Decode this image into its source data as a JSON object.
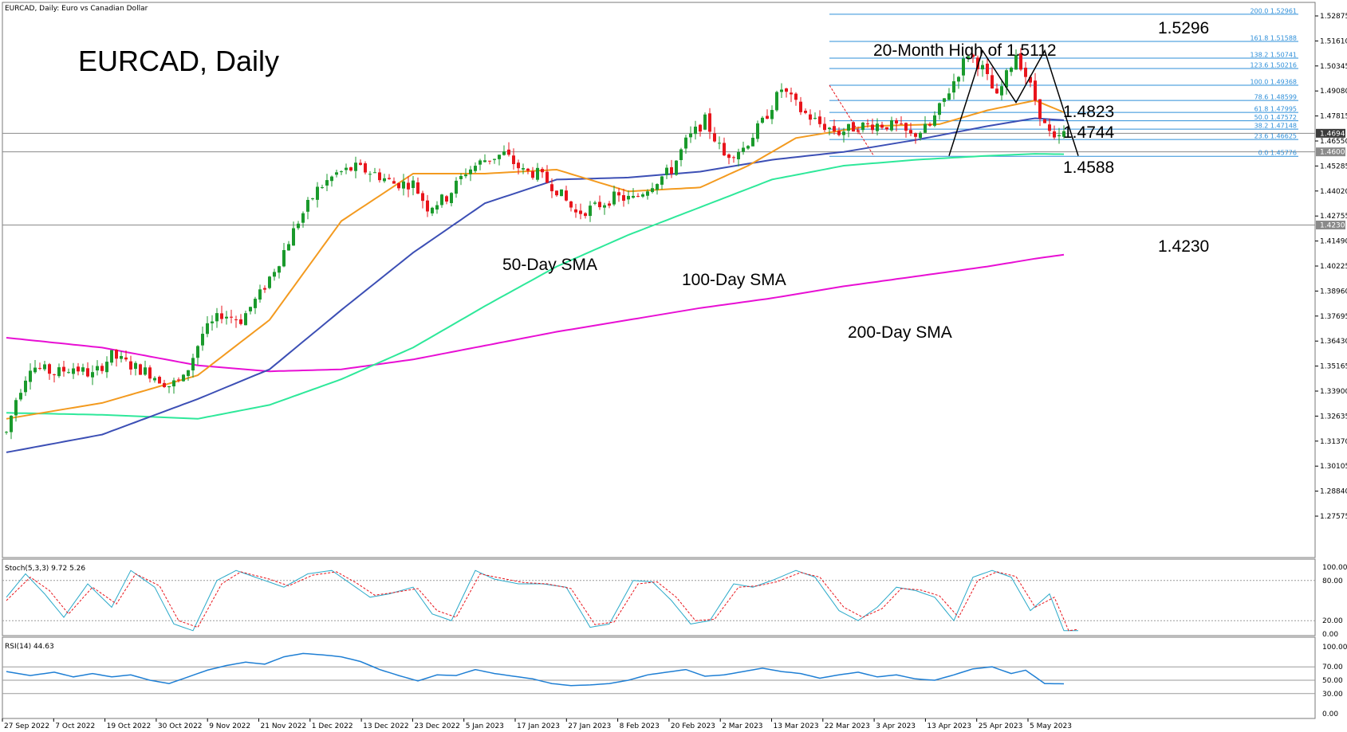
{
  "header": {
    "window_title": "EURCAD, Daily:  Euro vs Canadian Dollar",
    "chart_title": "EURCAD, Daily"
  },
  "colors": {
    "bull": "#1a9a2c",
    "bear": "#e8151c",
    "sma20": "#f39a1f",
    "sma50": "#3c4fb5",
    "sma100": "#2ee89a",
    "sma200": "#e80fd4",
    "fib": "#2e8fd9",
    "stoch_main": "#2aa9c9",
    "stoch_signal": "#e8151c",
    "rsi": "#1f7fd4"
  },
  "price_axis": {
    "ticks": [
      "1.52875",
      "1.51610",
      "1.50345",
      "1.49080",
      "1.47815",
      "1.46550",
      "1.45285",
      "1.44020",
      "1.42755",
      "1.41490",
      "1.40225",
      "1.38960",
      "1.37695",
      "1.36430",
      "1.35165",
      "1.33900",
      "1.32635",
      "1.31370",
      "1.30105",
      "1.28840",
      "1.27575"
    ],
    "current_price_tag": "1.46940",
    "level_tag_1": "1.46000",
    "level_tag_2": "1.42300"
  },
  "date_axis": {
    "labels": [
      "27 Sep 2022",
      "7 Oct 2022",
      "19 Oct 2022",
      "30 Oct 2022",
      "9 Nov 2022",
      "21 Nov 2022",
      "1 Dec 2022",
      "13 Dec 2022",
      "23 Dec 2022",
      "5 Jan 2023",
      "17 Jan 2023",
      "27 Jan 2023",
      "8 Feb 2023",
      "20 Feb 2023",
      "2 Mar 2023",
      "13 Mar 2023",
      "22 Mar 2023",
      "3 Apr 2023",
      "13 Apr 2023",
      "25 Apr 2023",
      "5 May 2023"
    ]
  },
  "fib_labels": [
    "200.0 1.52961",
    "161.8 1.51588",
    "138.2 1.50741",
    "123.6 1.50216",
    "100.0 1.49368",
    "78.6 1.48599",
    "61.8 1.47995",
    "50.0 1.47572",
    "38.2 1.47148",
    "23.6 1.46625",
    "0.0 1.45776"
  ],
  "annotations": {
    "high_label": "20-Month High of 1.5112",
    "level_1_5296": "1.5296",
    "level_1_4823": "1.4823",
    "level_1_4744": "1.4744",
    "level_1_4588": "1.4588",
    "level_1_4230": "1.4230",
    "sma50_label": "50-Day SMA",
    "sma100_label": "100-Day SMA",
    "sma200_label": "200-Day SMA"
  },
  "stoch": {
    "header": "Stoch(5,3,3) 9.72 5.26",
    "ticks": [
      "100.00",
      "80.00",
      "20.00",
      "0.00"
    ]
  },
  "rsi": {
    "header": "RSI(14) 44.63",
    "ticks": [
      "100.00",
      "70.00",
      "50.00",
      "30.00",
      "0.00"
    ]
  },
  "chart_data": {
    "type": "candlestick",
    "title": "EURCAD, Daily",
    "symbol": "EURCAD",
    "timeframe": "Daily",
    "ylim": [
      1.2695,
      1.5325
    ],
    "fib_levels": [
      {
        "ratio": 200.0,
        "price": 1.52961
      },
      {
        "ratio": 161.8,
        "price": 1.51588
      },
      {
        "ratio": 138.2,
        "price": 1.50741
      },
      {
        "ratio": 123.6,
        "price": 1.50216
      },
      {
        "ratio": 100.0,
        "price": 1.49368
      },
      {
        "ratio": 78.6,
        "price": 1.48599
      },
      {
        "ratio": 61.8,
        "price": 1.47995
      },
      {
        "ratio": 50.0,
        "price": 1.47572
      },
      {
        "ratio": 38.2,
        "price": 1.47148
      },
      {
        "ratio": 23.6,
        "price": 1.46625
      },
      {
        "ratio": 0.0,
        "price": 1.45776
      }
    ],
    "horizontal_levels": [
      1.4694,
      1.46,
      1.423
    ],
    "price_path_anchors": [
      [
        0,
        1.318
      ],
      [
        2,
        1.335
      ],
      [
        5,
        1.352
      ],
      [
        10,
        1.348
      ],
      [
        14,
        1.351
      ],
      [
        18,
        1.347
      ],
      [
        22,
        1.357
      ],
      [
        26,
        1.352
      ],
      [
        30,
        1.348
      ],
      [
        34,
        1.342
      ],
      [
        37,
        1.345
      ],
      [
        41,
        1.368
      ],
      [
        45,
        1.378
      ],
      [
        49,
        1.375
      ],
      [
        53,
        1.388
      ],
      [
        57,
        1.405
      ],
      [
        61,
        1.425
      ],
      [
        65,
        1.441
      ],
      [
        69,
        1.449
      ],
      [
        73,
        1.452
      ],
      [
        77,
        1.449
      ],
      [
        81,
        1.444
      ],
      [
        85,
        1.444
      ],
      [
        88,
        1.432
      ],
      [
        92,
        1.437
      ],
      [
        96,
        1.45
      ],
      [
        100,
        1.456
      ],
      [
        104,
        1.459
      ],
      [
        108,
        1.45
      ],
      [
        111,
        1.449
      ],
      [
        115,
        1.441
      ],
      [
        119,
        1.429
      ],
      [
        123,
        1.432
      ],
      [
        127,
        1.437
      ],
      [
        131,
        1.436
      ],
      [
        135,
        1.444
      ],
      [
        139,
        1.451
      ],
      [
        142,
        1.465
      ],
      [
        146,
        1.476
      ],
      [
        150,
        1.458
      ],
      [
        154,
        1.462
      ],
      [
        158,
        1.475
      ],
      [
        162,
        1.492
      ],
      [
        166,
        1.481
      ],
      [
        170,
        1.474
      ],
      [
        174,
        1.47
      ],
      [
        178,
        1.473
      ],
      [
        182,
        1.474
      ],
      [
        186,
        1.473
      ],
      [
        189,
        1.468
      ],
      [
        193,
        1.473
      ],
      [
        197,
        1.491
      ],
      [
        201,
        1.51
      ],
      [
        204,
        1.502
      ],
      [
        207,
        1.487
      ],
      [
        211,
        1.51
      ],
      [
        214,
        1.493
      ],
      [
        217,
        1.473
      ],
      [
        219,
        1.465
      ],
      [
        221,
        1.469
      ]
    ],
    "sma20": [
      [
        0,
        1.325
      ],
      [
        20,
        1.333
      ],
      [
        40,
        1.347
      ],
      [
        55,
        1.375
      ],
      [
        70,
        1.425
      ],
      [
        85,
        1.449
      ],
      [
        100,
        1.449
      ],
      [
        115,
        1.451
      ],
      [
        130,
        1.44
      ],
      [
        145,
        1.442
      ],
      [
        155,
        1.453
      ],
      [
        165,
        1.467
      ],
      [
        180,
        1.473
      ],
      [
        195,
        1.474
      ],
      [
        205,
        1.481
      ],
      [
        215,
        1.486
      ],
      [
        221,
        1.48
      ]
    ],
    "sma50": [
      [
        0,
        1.308
      ],
      [
        20,
        1.317
      ],
      [
        40,
        1.335
      ],
      [
        55,
        1.35
      ],
      [
        70,
        1.38
      ],
      [
        85,
        1.409
      ],
      [
        100,
        1.434
      ],
      [
        115,
        1.446
      ],
      [
        130,
        1.447
      ],
      [
        145,
        1.45
      ],
      [
        160,
        1.456
      ],
      [
        175,
        1.46
      ],
      [
        190,
        1.466
      ],
      [
        205,
        1.473
      ],
      [
        215,
        1.477
      ],
      [
        221,
        1.476
      ]
    ],
    "sma100": [
      [
        0,
        1.328
      ],
      [
        20,
        1.327
      ],
      [
        40,
        1.325
      ],
      [
        55,
        1.332
      ],
      [
        70,
        1.345
      ],
      [
        85,
        1.361
      ],
      [
        100,
        1.382
      ],
      [
        115,
        1.402
      ],
      [
        130,
        1.418
      ],
      [
        145,
        1.432
      ],
      [
        160,
        1.446
      ],
      [
        175,
        1.453
      ],
      [
        190,
        1.456
      ],
      [
        205,
        1.458
      ],
      [
        215,
        1.459
      ],
      [
        221,
        1.4588
      ]
    ],
    "sma200": [
      [
        0,
        1.366
      ],
      [
        20,
        1.361
      ],
      [
        40,
        1.352
      ],
      [
        55,
        1.349
      ],
      [
        70,
        1.35
      ],
      [
        85,
        1.355
      ],
      [
        100,
        1.362
      ],
      [
        115,
        1.369
      ],
      [
        130,
        1.375
      ],
      [
        145,
        1.381
      ],
      [
        160,
        1.386
      ],
      [
        175,
        1.392
      ],
      [
        190,
        1.397
      ],
      [
        205,
        1.402
      ],
      [
        215,
        1.406
      ],
      [
        221,
        1.408
      ]
    ],
    "double_top_path": [
      [
        197,
        1.458
      ],
      [
        204,
        1.5112
      ],
      [
        211,
        1.485
      ],
      [
        217,
        1.5112
      ],
      [
        224,
        1.458
      ]
    ],
    "stoch_main_anchors": [
      [
        0,
        55
      ],
      [
        4,
        90
      ],
      [
        8,
        60
      ],
      [
        12,
        25
      ],
      [
        17,
        75
      ],
      [
        22,
        40
      ],
      [
        26,
        95
      ],
      [
        31,
        70
      ],
      [
        35,
        15
      ],
      [
        39,
        5
      ],
      [
        44,
        80
      ],
      [
        48,
        95
      ],
      [
        54,
        80
      ],
      [
        58,
        70
      ],
      [
        63,
        90
      ],
      [
        68,
        95
      ],
      [
        72,
        75
      ],
      [
        76,
        55
      ],
      [
        80,
        60
      ],
      [
        85,
        70
      ],
      [
        89,
        30
      ],
      [
        93,
        20
      ],
      [
        98,
        95
      ],
      [
        102,
        82
      ],
      [
        107,
        75
      ],
      [
        112,
        75
      ],
      [
        117,
        70
      ],
      [
        122,
        10
      ],
      [
        126,
        15
      ],
      [
        131,
        80
      ],
      [
        135,
        78
      ],
      [
        139,
        50
      ],
      [
        143,
        15
      ],
      [
        147,
        20
      ],
      [
        152,
        75
      ],
      [
        156,
        70
      ],
      [
        160,
        80
      ],
      [
        165,
        95
      ],
      [
        169,
        85
      ],
      [
        174,
        35
      ],
      [
        178,
        20
      ],
      [
        182,
        40
      ],
      [
        186,
        70
      ],
      [
        190,
        65
      ],
      [
        194,
        55
      ],
      [
        198,
        20
      ],
      [
        202,
        85
      ],
      [
        206,
        95
      ],
      [
        210,
        85
      ],
      [
        214,
        35
      ],
      [
        218,
        60
      ],
      [
        221,
        5
      ],
      [
        224,
        5
      ]
    ],
    "stoch_signal_anchors": [
      [
        0,
        50
      ],
      [
        5,
        85
      ],
      [
        9,
        65
      ],
      [
        13,
        30
      ],
      [
        18,
        70
      ],
      [
        23,
        45
      ],
      [
        27,
        90
      ],
      [
        32,
        72
      ],
      [
        36,
        20
      ],
      [
        40,
        10
      ],
      [
        45,
        75
      ],
      [
        49,
        93
      ],
      [
        55,
        82
      ],
      [
        59,
        72
      ],
      [
        64,
        88
      ],
      [
        69,
        93
      ],
      [
        73,
        77
      ],
      [
        77,
        58
      ],
      [
        81,
        62
      ],
      [
        86,
        68
      ],
      [
        90,
        35
      ],
      [
        94,
        25
      ],
      [
        99,
        90
      ],
      [
        103,
        84
      ],
      [
        108,
        77
      ],
      [
        113,
        75
      ],
      [
        118,
        68
      ],
      [
        123,
        14
      ],
      [
        127,
        18
      ],
      [
        132,
        75
      ],
      [
        136,
        78
      ],
      [
        140,
        55
      ],
      [
        144,
        20
      ],
      [
        148,
        22
      ],
      [
        153,
        70
      ],
      [
        157,
        72
      ],
      [
        161,
        78
      ],
      [
        166,
        92
      ],
      [
        170,
        85
      ],
      [
        175,
        40
      ],
      [
        179,
        25
      ],
      [
        183,
        38
      ],
      [
        187,
        68
      ],
      [
        191,
        66
      ],
      [
        195,
        57
      ],
      [
        199,
        25
      ],
      [
        203,
        80
      ],
      [
        207,
        93
      ],
      [
        211,
        86
      ],
      [
        215,
        40
      ],
      [
        219,
        55
      ],
      [
        222,
        5
      ],
      [
        224,
        7
      ]
    ],
    "rsi_anchors": [
      [
        0,
        63
      ],
      [
        5,
        57
      ],
      [
        10,
        62
      ],
      [
        14,
        55
      ],
      [
        18,
        60
      ],
      [
        22,
        55
      ],
      [
        26,
        58
      ],
      [
        30,
        50
      ],
      [
        34,
        45
      ],
      [
        38,
        55
      ],
      [
        42,
        65
      ],
      [
        46,
        72
      ],
      [
        50,
        77
      ],
      [
        54,
        74
      ],
      [
        58,
        85
      ],
      [
        62,
        90
      ],
      [
        66,
        88
      ],
      [
        70,
        85
      ],
      [
        74,
        78
      ],
      [
        78,
        66
      ],
      [
        82,
        57
      ],
      [
        86,
        49
      ],
      [
        90,
        58
      ],
      [
        94,
        57
      ],
      [
        98,
        66
      ],
      [
        102,
        60
      ],
      [
        106,
        56
      ],
      [
        110,
        52
      ],
      [
        114,
        45
      ],
      [
        118,
        42
      ],
      [
        122,
        43
      ],
      [
        126,
        45
      ],
      [
        130,
        50
      ],
      [
        134,
        58
      ],
      [
        138,
        62
      ],
      [
        142,
        66
      ],
      [
        146,
        56
      ],
      [
        150,
        58
      ],
      [
        154,
        63
      ],
      [
        158,
        68
      ],
      [
        162,
        63
      ],
      [
        166,
        60
      ],
      [
        170,
        53
      ],
      [
        174,
        58
      ],
      [
        178,
        62
      ],
      [
        182,
        55
      ],
      [
        186,
        58
      ],
      [
        190,
        52
      ],
      [
        194,
        50
      ],
      [
        198,
        58
      ],
      [
        202,
        67
      ],
      [
        206,
        70
      ],
      [
        210,
        60
      ],
      [
        213,
        65
      ],
      [
        215,
        55
      ],
      [
        217,
        45
      ],
      [
        221,
        44.63
      ]
    ],
    "series": [
      {
        "name": "50-Day SMA"
      },
      {
        "name": "100-Day SMA"
      },
      {
        "name": "200-Day SMA"
      }
    ]
  }
}
